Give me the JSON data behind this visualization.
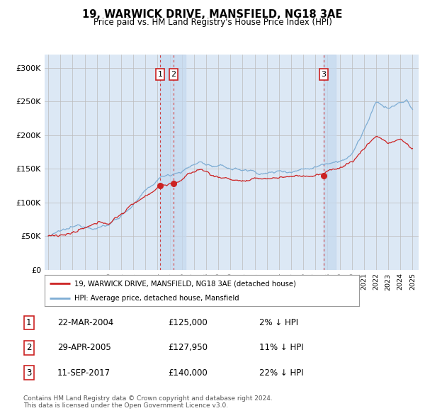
{
  "title": "19, WARWICK DRIVE, MANSFIELD, NG18 3AE",
  "subtitle": "Price paid vs. HM Land Registry's House Price Index (HPI)",
  "ylim": [
    0,
    320000
  ],
  "yticks": [
    0,
    50000,
    100000,
    150000,
    200000,
    250000,
    300000
  ],
  "ytick_labels": [
    "£0",
    "£50K",
    "£100K",
    "£150K",
    "£200K",
    "£250K",
    "£300K"
  ],
  "x_start_year": 1995,
  "x_end_year": 2025,
  "hpi_color": "#7eadd4",
  "price_color": "#cc2222",
  "marker_color": "#cc2222",
  "vline_color": "#cc2222",
  "grid_color": "#cccccc",
  "bg_color": "#dce8f5",
  "highlight_color": "#c5d9ee",
  "sale1_date": "22-MAR-2004",
  "sale1_price": 125000,
  "sale1_price_str": "£125,000",
  "sale1_pct": "2% ↓ HPI",
  "sale1_label": "1",
  "sale1_x": 2004.22,
  "sale2_date": "29-APR-2005",
  "sale2_price": 127950,
  "sale2_price_str": "£127,950",
  "sale2_pct": "11% ↓ HPI",
  "sale2_label": "2",
  "sale2_x": 2005.32,
  "sale3_date": "11-SEP-2017",
  "sale3_price": 140000,
  "sale3_price_str": "£140,000",
  "sale3_pct": "22% ↓ HPI",
  "sale3_label": "3",
  "sale3_x": 2017.69,
  "legend_line1": "19, WARWICK DRIVE, MANSFIELD, NG18 3AE (detached house)",
  "legend_line2": "HPI: Average price, detached house, Mansfield",
  "footer": "Contains HM Land Registry data © Crown copyright and database right 2024.\nThis data is licensed under the Open Government Licence v3.0."
}
